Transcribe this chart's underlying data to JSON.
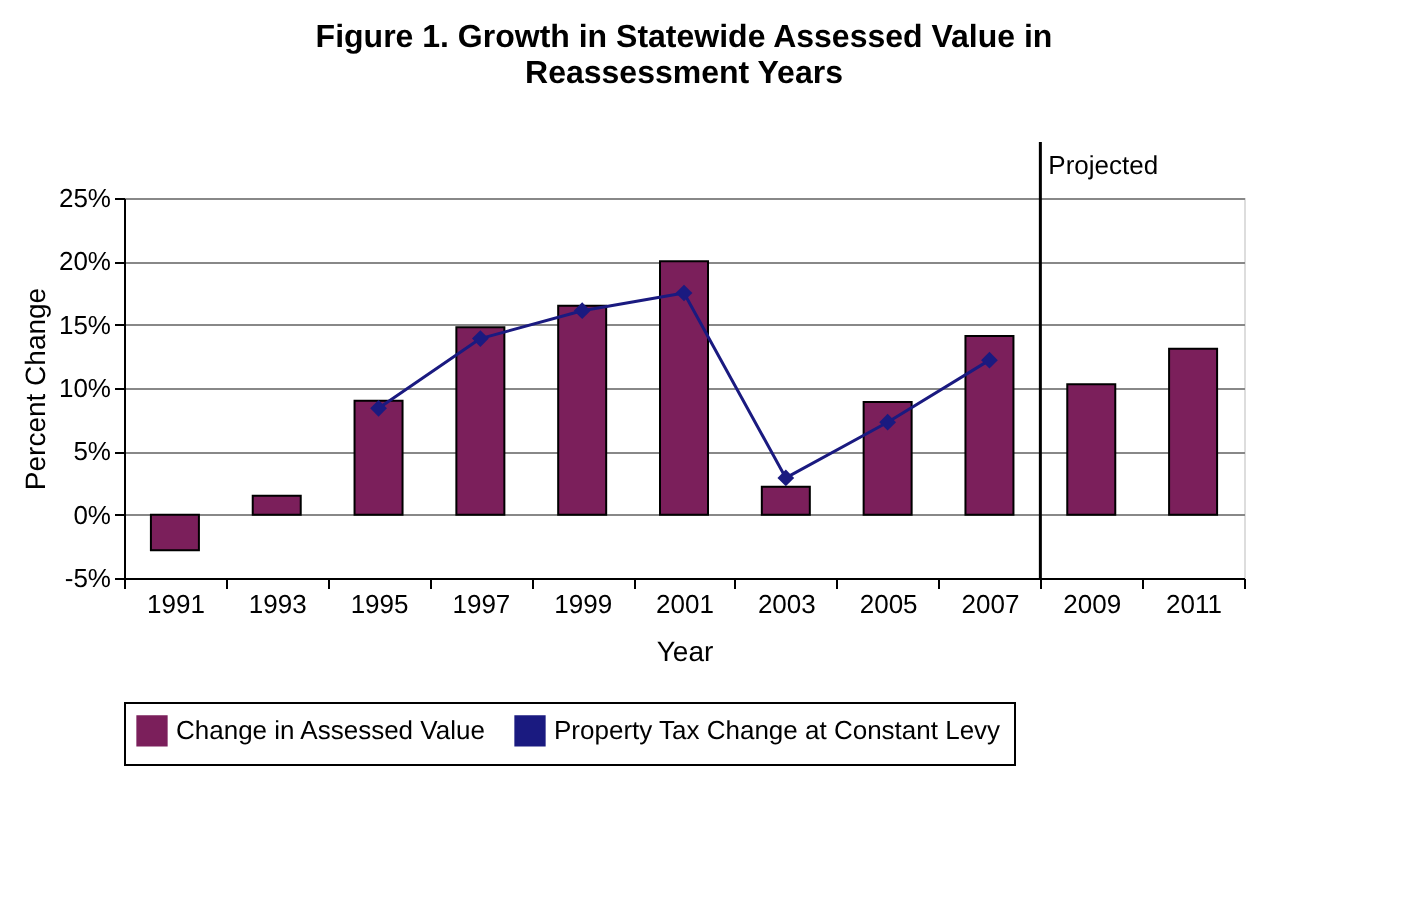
{
  "chart_data": {
    "type": "bar",
    "title": [
      "Figure 1.  Growth in Statewide Assessed Value in",
      "Reassessment Years"
    ],
    "xlabel": "Year",
    "ylabel": "Percent Change",
    "categories": [
      "1991",
      "1993",
      "1995",
      "1997",
      "1999",
      "2001",
      "2003",
      "2005",
      "2007",
      "2009",
      "2011"
    ],
    "series": [
      {
        "name": "Change in Assessed Value",
        "type": "bar",
        "color": "#7b1f5b",
        "values": [
          -2.8,
          1.5,
          9.0,
          14.8,
          16.5,
          20.0,
          2.2,
          8.9,
          14.1,
          10.3,
          13.1
        ]
      },
      {
        "name": "Property Tax Change at Constant Levy",
        "type": "line",
        "color": "#1a1a80",
        "marker": "diamond",
        "values": [
          null,
          null,
          8.4,
          13.9,
          16.1,
          17.5,
          2.9,
          7.3,
          12.2,
          null,
          null
        ]
      }
    ],
    "ylim": [
      -5,
      25
    ],
    "yticks": [
      {
        "value": -5,
        "label": "-5%"
      },
      {
        "value": 0,
        "label": "0%"
      },
      {
        "value": 5,
        "label": "5%"
      },
      {
        "value": 10,
        "label": "10%"
      },
      {
        "value": 15,
        "label": "15%"
      },
      {
        "value": 20,
        "label": "20%"
      },
      {
        "value": 25,
        "label": "25%"
      }
    ],
    "ref_lines": [
      {
        "axis": "x",
        "value": "2009",
        "label": "Projected",
        "color": "#000000"
      }
    ],
    "grid": "y",
    "legend": "bottom"
  }
}
